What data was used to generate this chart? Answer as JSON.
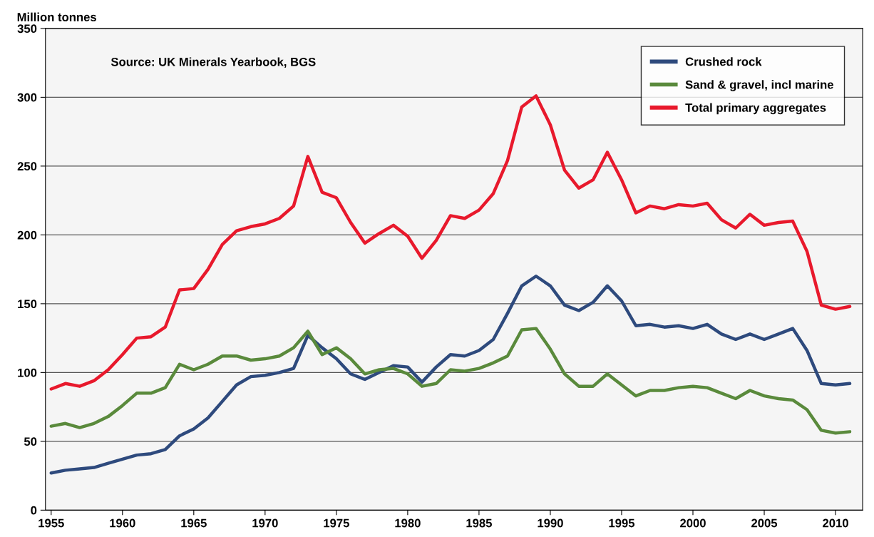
{
  "chart_data": {
    "type": "line",
    "ylabel": "Million tonnes",
    "annotations": [
      "Source: UK Minerals Yearbook, BGS"
    ],
    "x": [
      1955,
      1956,
      1957,
      1958,
      1959,
      1960,
      1961,
      1962,
      1963,
      1964,
      1965,
      1966,
      1967,
      1968,
      1969,
      1970,
      1971,
      1972,
      1973,
      1974,
      1975,
      1976,
      1977,
      1978,
      1979,
      1980,
      1981,
      1982,
      1983,
      1984,
      1985,
      1986,
      1987,
      1988,
      1989,
      1990,
      1991,
      1992,
      1993,
      1994,
      1995,
      1996,
      1997,
      1998,
      1999,
      2000,
      2001,
      2002,
      2003,
      2004,
      2005,
      2006,
      2007,
      2008,
      2009,
      2010,
      2011
    ],
    "series": [
      {
        "name": "Crushed rock",
        "color": "#2e4a7d",
        "values": [
          27,
          29,
          30,
          31,
          34,
          37,
          40,
          41,
          44,
          54,
          59,
          67,
          79,
          91,
          97,
          98,
          100,
          103,
          127,
          118,
          110,
          99,
          95,
          100,
          105,
          104,
          93,
          104,
          113,
          112,
          116,
          124,
          143,
          163,
          170,
          163,
          149,
          145,
          151,
          163,
          152,
          134,
          135,
          133,
          134,
          132,
          135,
          128,
          124,
          128,
          124,
          128,
          132,
          116,
          92,
          91,
          92
        ]
      },
      {
        "name": "Sand & gravel, incl marine",
        "color": "#5a8a3c",
        "values": [
          61,
          63,
          60,
          63,
          68,
          76,
          85,
          85,
          89,
          106,
          102,
          106,
          112,
          112,
          109,
          110,
          112,
          118,
          130,
          113,
          118,
          110,
          99,
          102,
          103,
          99,
          90,
          92,
          102,
          101,
          103,
          107,
          112,
          131,
          132,
          117,
          99,
          90,
          90,
          99,
          91,
          83,
          87,
          87,
          89,
          90,
          89,
          85,
          81,
          87,
          83,
          81,
          80,
          73,
          58,
          56,
          57
        ]
      },
      {
        "name": "Total primary aggregates",
        "color": "#e8192c",
        "values": [
          88,
          92,
          90,
          94,
          102,
          113,
          125,
          126,
          133,
          160,
          161,
          175,
          193,
          203,
          206,
          208,
          212,
          221,
          257,
          231,
          227,
          209,
          194,
          201,
          207,
          199,
          183,
          196,
          214,
          212,
          218,
          230,
          254,
          293,
          301,
          280,
          247,
          234,
          240,
          260,
          240,
          216,
          221,
          219,
          222,
          221,
          223,
          211,
          205,
          215,
          207,
          209,
          210,
          188,
          149,
          146,
          148
        ]
      }
    ],
    "xlim": [
      1954.6,
      2011.9
    ],
    "xticks": [
      1955,
      1960,
      1965,
      1970,
      1975,
      1980,
      1985,
      1990,
      1995,
      2000,
      2005,
      2010
    ],
    "ylim": [
      0,
      350
    ],
    "yticks": [
      0,
      50,
      100,
      150,
      200,
      250,
      300,
      350
    ],
    "grid": "y",
    "legend": "top right",
    "marker": "none",
    "line_style": "solid"
  }
}
